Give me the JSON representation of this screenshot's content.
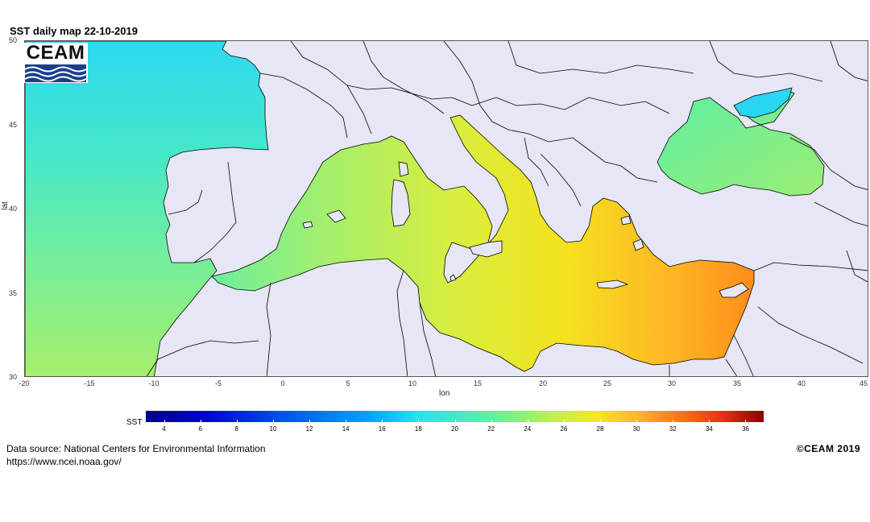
{
  "title": "SST daily map 22-10-2019",
  "logo": {
    "text": "CEAM"
  },
  "axes": {
    "xlabel": "lon",
    "ylabel": "lat",
    "xticks": [
      "-20",
      "-15",
      "-10",
      "-5",
      "0",
      "5",
      "10",
      "15",
      "20",
      "25",
      "30",
      "35",
      "40",
      "45"
    ],
    "yticks": [
      "50",
      "45",
      "40",
      "35",
      "30"
    ],
    "xlim": [
      -20,
      45
    ],
    "ylim": [
      30,
      50
    ]
  },
  "legend": {
    "title": "SST",
    "ticks": [
      "4",
      "6",
      "8",
      "10",
      "12",
      "14",
      "16",
      "18",
      "20",
      "22",
      "24",
      "26",
      "28",
      "30",
      "32",
      "34",
      "36"
    ],
    "range": [
      3,
      37
    ],
    "colors": [
      "#00008b",
      "#0000d0",
      "#0050f0",
      "#00a4ff",
      "#22e4ee",
      "#5ef0a0",
      "#c2ef4c",
      "#f5e81e",
      "#ffb22a",
      "#ff7a18",
      "#f0301a",
      "#8b0000"
    ]
  },
  "colors": {
    "land": "#e6e6f5",
    "border": "#000000"
  },
  "footer": {
    "source_line1": "Data source: National Centers for Environmental Information",
    "source_line2": "https://www.ncei.noaa.gov/",
    "copyright": "©CEAM 2019"
  }
}
